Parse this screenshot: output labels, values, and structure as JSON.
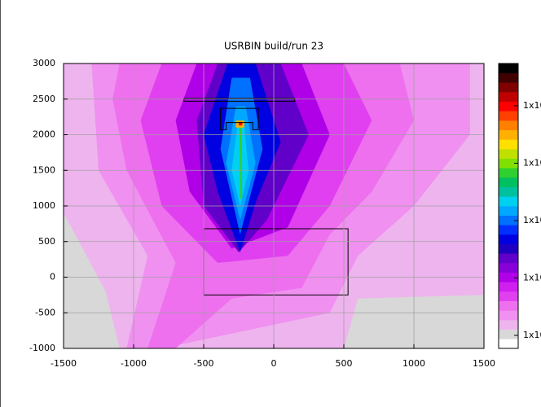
{
  "chart_data": {
    "type": "contour",
    "title": "USRBIN build/run 23",
    "xlim": [
      -1500,
      1500
    ],
    "ylim": [
      -1000,
      3000
    ],
    "xticks": [
      -1500,
      -1000,
      -500,
      0,
      500,
      1000,
      1500
    ],
    "yticks": [
      -1000,
      -500,
      0,
      500,
      1000,
      1500,
      2000,
      2500,
      3000
    ],
    "grid": true,
    "colorbar_colors": [
      "#ffffff",
      "#d8d8d8",
      "#eeb4ee",
      "#f090f0",
      "#ee70ee",
      "#e040f0",
      "#d020f0",
      "#b000e8",
      "#8800d8",
      "#6000c8",
      "#2000c0",
      "#0000e0",
      "#0030ff",
      "#0070ff",
      "#00a8ff",
      "#00d0f0",
      "#00c0a0",
      "#00c060",
      "#30d030",
      "#80e000",
      "#c0e000",
      "#ffe000",
      "#ffb000",
      "#ff8000",
      "#ff4000",
      "#ff0000",
      "#c00000",
      "#800000",
      "#400000",
      "#000000"
    ],
    "colorbar_labels": [
      "1x10",
      "1x10",
      "1x10",
      "1x10",
      "1x10"
    ],
    "regions": [
      {
        "level": 1,
        "x": [
          -1500,
          1500,
          1500,
          -1500
        ],
        "y": [
          3000,
          3000,
          -1000,
          -1000
        ]
      },
      {
        "level": 2,
        "x": [
          -1500,
          1500,
          1500,
          600,
          500,
          -1100,
          -1200,
          -1500
        ],
        "y": [
          3000,
          3000,
          -250,
          -300,
          -1000,
          -1000,
          -200,
          900
        ]
      },
      {
        "level": 3,
        "x": [
          -1300,
          1400,
          1400,
          1000,
          600,
          400,
          -800,
          -1050,
          -900,
          -1250
        ],
        "y": [
          3000,
          3000,
          2000,
          1000,
          300,
          -500,
          -1000,
          -1000,
          300,
          1500
        ]
      },
      {
        "level": 4,
        "x": [
          -1100,
          900,
          1000,
          700,
          400,
          200,
          -300,
          -700,
          -900,
          -700,
          -1050,
          -1150
        ],
        "y": [
          3000,
          3000,
          2200,
          1200,
          600,
          -150,
          -300,
          -1000,
          -1000,
          200,
          1500,
          2500
        ]
      },
      {
        "level": 5,
        "x": [
          -800,
          500,
          700,
          400,
          100,
          -400,
          -800,
          -950
        ],
        "y": [
          3000,
          3000,
          2200,
          1000,
          300,
          200,
          1000,
          2200
        ]
      },
      {
        "level": 7,
        "x": [
          -550,
          200,
          400,
          100,
          -300,
          -600,
          -700
        ],
        "y": [
          3000,
          3000,
          2000,
          700,
          400,
          1200,
          2200
        ]
      },
      {
        "level": 9,
        "x": [
          -400,
          50,
          250,
          -50,
          -250,
          -500,
          -550
        ],
        "y": [
          3000,
          3000,
          2000,
          800,
          350,
          1000,
          2200
        ]
      },
      {
        "level": 11,
        "x": [
          -330,
          -130,
          50,
          -120,
          -240,
          -400,
          -500
        ],
        "y": [
          3000,
          3000,
          1900,
          1100,
          350,
          1200,
          2000
        ]
      },
      {
        "level": 13,
        "x": [
          -300,
          -170,
          -80,
          -240,
          -380
        ],
        "y": [
          2800,
          2800,
          1800,
          600,
          1800
        ]
      },
      {
        "level": 14,
        "x": [
          -270,
          -200,
          -130,
          -240,
          -340
        ],
        "y": [
          2400,
          2400,
          1600,
          800,
          1600
        ]
      },
      {
        "level": 15,
        "x": [
          -255,
          -215,
          -180,
          -240,
          -300
        ],
        "y": [
          2200,
          2200,
          1500,
          1000,
          1500
        ]
      },
      {
        "level": 18,
        "x": [
          -245,
          -230,
          -225,
          -240
        ],
        "y": [
          2150,
          2150,
          1100,
          1100
        ]
      },
      {
        "level": 22,
        "x": [
          -270,
          -210,
          -210,
          -270
        ],
        "y": [
          2200,
          2200,
          2100,
          2100
        ]
      },
      {
        "level": 25,
        "x": [
          -250,
          -225,
          -225,
          -250
        ],
        "y": [
          2180,
          2180,
          2130,
          2130
        ]
      }
    ],
    "outlines": [
      {
        "x": [
          -640,
          150,
          150,
          -640
        ],
        "y": [
          2510,
          2510,
          2470,
          2470
        ]
      },
      {
        "x": [
          -380,
          -110,
          -110,
          -150,
          -150,
          -340,
          -340,
          -380
        ],
        "y": [
          2370,
          2370,
          2070,
          2070,
          2170,
          2170,
          2070,
          2070
        ]
      },
      {
        "x": [
          -500,
          530,
          530,
          -500
        ],
        "y": [
          680,
          680,
          -250,
          -250
        ]
      }
    ]
  }
}
